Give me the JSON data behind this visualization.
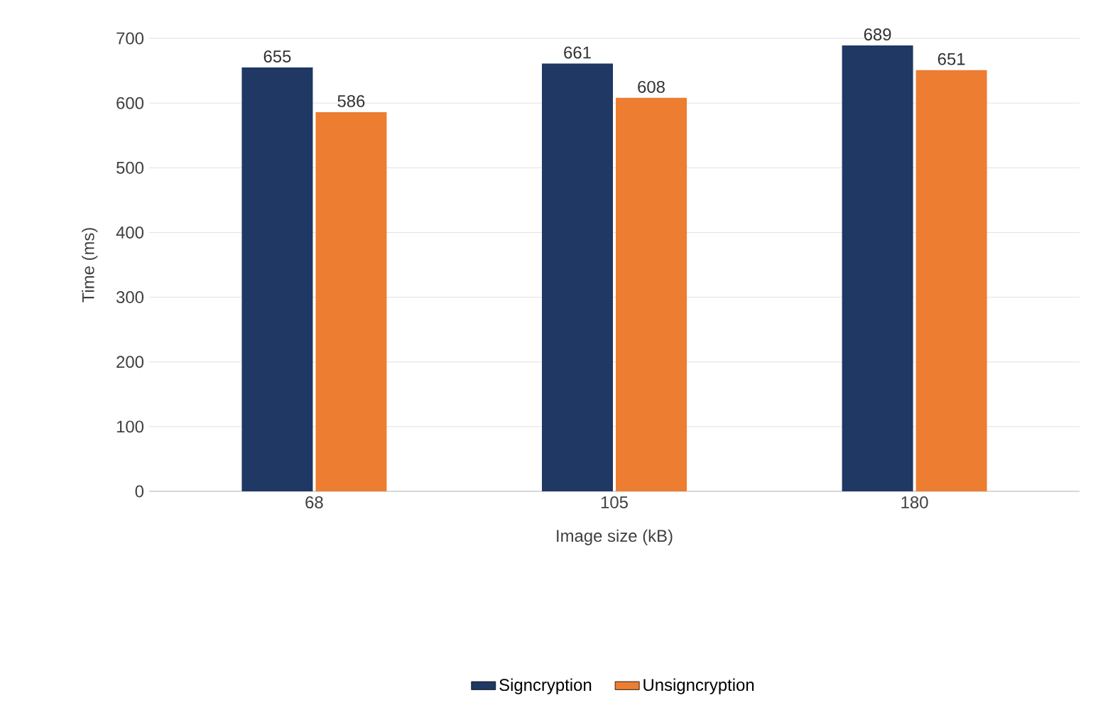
{
  "chart_data": {
    "type": "bar",
    "xlabel": "Image size (kB)",
    "ylabel": "Time (ms)",
    "categories": [
      "68",
      "105",
      "180"
    ],
    "series": [
      {
        "name": "Signcryption",
        "color": "#1f3864",
        "values": [
          655,
          661,
          689
        ]
      },
      {
        "name": "Unsigncryption",
        "color": "#ed7d31",
        "values": [
          586,
          608,
          651
        ]
      }
    ],
    "ylim": [
      0,
      700
    ],
    "yticks": [
      0,
      100,
      200,
      300,
      400,
      500,
      600,
      700
    ],
    "grid": "y",
    "legend": "bottom",
    "data_labels": true
  }
}
